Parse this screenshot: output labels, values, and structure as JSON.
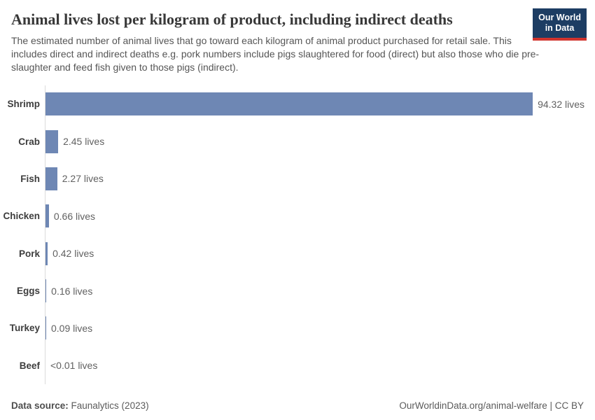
{
  "header": {
    "title": "Animal lives lost per kilogram of product, including indirect deaths",
    "subtitle": "The estimated number of animal lives that go toward each kilogram of animal product purchased for retail sale. This includes direct and indirect deaths e.g. pork numbers include pigs slaughtered for food (direct) but also those who die pre-slaughter and feed fish given to those pigs (indirect).",
    "logo": {
      "line1": "Our World",
      "line2": "in Data"
    }
  },
  "chart_data": {
    "type": "bar",
    "orientation": "horizontal",
    "title": "Animal lives lost per kilogram of product, including indirect deaths",
    "categories": [
      "Shrimp",
      "Crab",
      "Fish",
      "Chicken",
      "Pork",
      "Eggs",
      "Turkey",
      "Beef"
    ],
    "values": [
      94.32,
      2.45,
      2.27,
      0.66,
      0.42,
      0.16,
      0.09,
      0.004
    ],
    "value_labels": [
      "94.32 lives",
      "2.45 lives",
      "2.27 lives",
      "0.66 lives",
      "0.42 lives",
      "0.16 lives",
      "0.09 lives",
      "<0.01 lives"
    ],
    "unit": "lives",
    "xlim": [
      0,
      94.32
    ],
    "grid": false,
    "legend": false,
    "bar_color": "#6e87b4",
    "axis_color": "#dcdcdc"
  },
  "footer": {
    "source_label": "Data source:",
    "source_value": " Faunalytics (2023)",
    "attribution": "OurWorldinData.org/animal-welfare | CC BY"
  },
  "colors": {
    "bar": "#6e87b4",
    "axis_line": "#dcdcdc",
    "title_text": "#383838",
    "subtitle_text": "#555555",
    "category_text": "#3d3d3d",
    "value_text": "#616161",
    "footer_text": "#5b5b5b",
    "logo_background": "#1d3d63",
    "logo_accent": "#d1342e"
  }
}
